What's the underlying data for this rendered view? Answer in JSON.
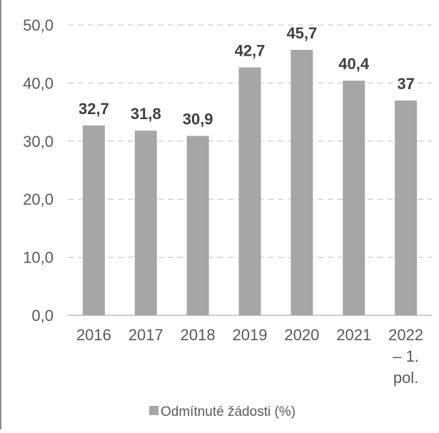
{
  "chart_data": {
    "type": "bar",
    "categories": [
      "2016",
      "2017",
      "2018",
      "2019",
      "2020",
      "2021",
      "2022 – 1. pol."
    ],
    "category_lines": [
      [
        "2016"
      ],
      [
        "2017"
      ],
      [
        "2018"
      ],
      [
        "2019"
      ],
      [
        "2020"
      ],
      [
        "2021"
      ],
      [
        "2022",
        "– 1.",
        "pol."
      ]
    ],
    "series": [
      {
        "name": "Odmítnuté žádosti (%)",
        "values": [
          32.7,
          31.8,
          30.9,
          42.7,
          45.7,
          40.4,
          37
        ],
        "labels": [
          "32,7",
          "31,8",
          "30,9",
          "42,7",
          "45,7",
          "40,4",
          "37"
        ],
        "color": "#a6a6a6"
      }
    ],
    "y_ticks": [
      "0,0",
      "10,0",
      "20,0",
      "30,0",
      "40,0",
      "50,0"
    ],
    "ylim": [
      0,
      50
    ],
    "grid": true,
    "grid_color": "#bfbfbf",
    "legend": "bottom",
    "title": "",
    "xlabel": "",
    "ylabel": ""
  }
}
